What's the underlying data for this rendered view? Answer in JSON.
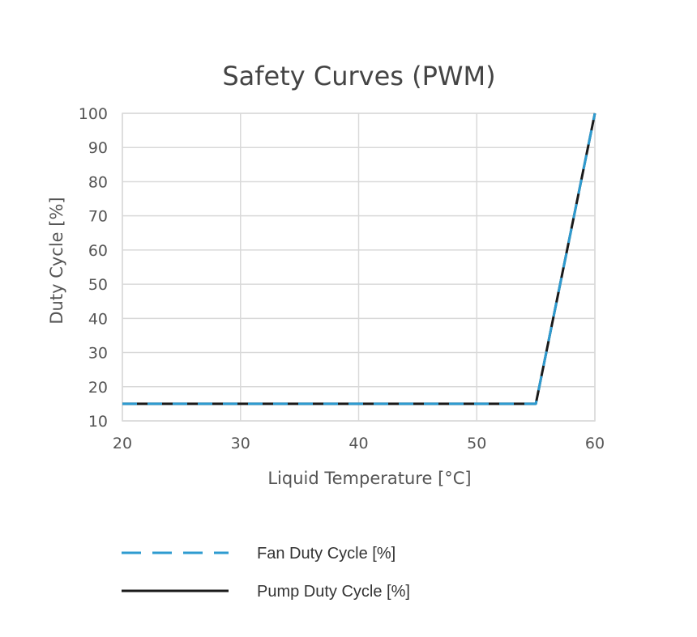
{
  "chart_data": {
    "type": "line",
    "title": "Safety Curves (PWM)",
    "xlabel": "Liquid Temperature [°C]",
    "ylabel": "Duty Cycle [%]",
    "xlim": [
      20,
      60
    ],
    "ylim": [
      10,
      100
    ],
    "xticks": [
      20,
      30,
      40,
      50,
      60
    ],
    "yticks": [
      10,
      20,
      30,
      40,
      50,
      60,
      70,
      80,
      90,
      100
    ],
    "grid": true,
    "legend_position": "bottom",
    "series": [
      {
        "name": "Fan Duty Cycle [%]",
        "color": "#2e9bd0",
        "style": "dashed",
        "x": [
          20,
          55,
          60
        ],
        "y": [
          15,
          15,
          100
        ]
      },
      {
        "name": "Pump Duty Cycle [%]",
        "color": "#1a1a1a",
        "style": "solid",
        "x": [
          20,
          55,
          60
        ],
        "y": [
          15,
          15,
          100
        ]
      }
    ]
  }
}
